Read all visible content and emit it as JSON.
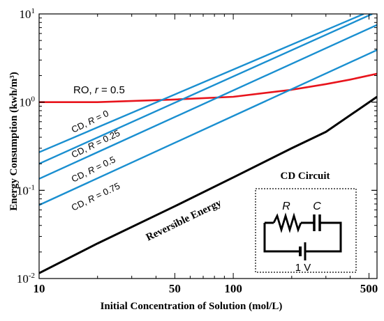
{
  "chart_data": {
    "type": "line",
    "xscale": "log",
    "yscale": "log",
    "xlim": [
      10,
      550
    ],
    "ylim": [
      0.01,
      10
    ],
    "xlabel": "Initial Concentration of Solution (mol/L)",
    "ylabel": "Energy Consumption (kwh/m³)",
    "xticks": [
      {
        "value": 10,
        "label": "10"
      },
      {
        "value": 50,
        "label": "50"
      },
      {
        "value": 100,
        "label": "100"
      },
      {
        "value": 500,
        "label": "500"
      }
    ],
    "yticks": [
      {
        "value": 0.01,
        "base": "10",
        "exp": "-2"
      },
      {
        "value": 0.1,
        "base": "10",
        "exp": "-1"
      },
      {
        "value": 1,
        "base": "10",
        "exp": "0"
      },
      {
        "value": 10,
        "base": "10",
        "exp": "1"
      }
    ],
    "grid": false,
    "series": [
      {
        "name_prefix": "RO, ",
        "name_italic": "r",
        "name_suffix": " = 0.5",
        "color": "#e8141c",
        "x": [
          10,
          20,
          50,
          100,
          200,
          300,
          400,
          550
        ],
        "y": [
          1.0,
          1.0,
          1.07,
          1.15,
          1.38,
          1.6,
          1.8,
          2.1
        ]
      },
      {
        "name_prefix": "CD, ",
        "name_italic": "R",
        "name_suffix": " = 0",
        "color": "#1a8fd0",
        "x": [
          10,
          470
        ],
        "y": [
          0.27,
          10
        ]
      },
      {
        "name_prefix": "CD, ",
        "name_italic": "R",
        "name_suffix": " = 0.25",
        "color": "#1a8fd0",
        "x": [
          10,
          520
        ],
        "y": [
          0.2,
          10
        ]
      },
      {
        "name_prefix": "CD, ",
        "name_italic": "R",
        "name_suffix": " = 0.5",
        "color": "#1a8fd0",
        "x": [
          10,
          550
        ],
        "y": [
          0.135,
          7.5
        ]
      },
      {
        "name_prefix": "CD, ",
        "name_italic": "R",
        "name_suffix": " = 0.75",
        "color": "#1a8fd0",
        "x": [
          10,
          550
        ],
        "y": [
          0.068,
          3.9
        ]
      },
      {
        "name": "Reversible Energy",
        "color": "#000000",
        "x": [
          10,
          20,
          50,
          100,
          200,
          300,
          550
        ],
        "y": [
          0.0115,
          0.025,
          0.066,
          0.14,
          0.3,
          0.46,
          1.15
        ]
      }
    ]
  },
  "circuit": {
    "title": "CD Circuit",
    "resistor_label": "R",
    "capacitor_label": "C",
    "voltage_label": "1 V"
  }
}
